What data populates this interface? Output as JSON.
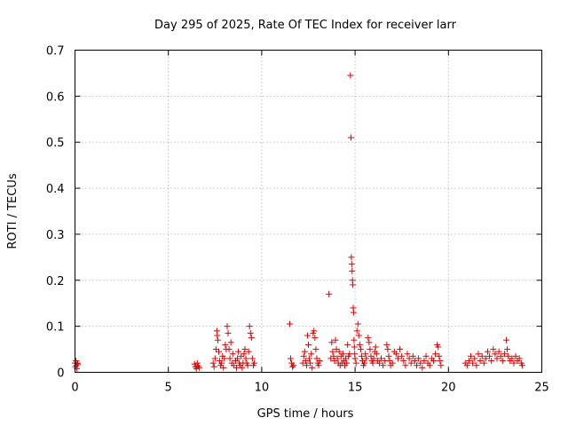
{
  "chart_data": {
    "type": "scatter",
    "title": "Day 295 of 2025, Rate Of TEC Index for receiver larr",
    "xlabel": "GPS time / hours",
    "ylabel": "ROTI / TECUs",
    "xlim": [
      0,
      25
    ],
    "ylim": [
      0,
      0.7
    ],
    "xticks": [
      "0",
      "5",
      "10",
      "15",
      "20",
      "25"
    ],
    "yticks": [
      "0",
      "0.1",
      "0.2",
      "0.3",
      "0.4",
      "0.5",
      "0.6",
      "0.7"
    ],
    "grid": true,
    "marker": "+",
    "color": "#e00000",
    "series": [
      {
        "name": "ROTI",
        "points": [
          [
            0.0,
            0.02
          ],
          [
            0.02,
            0.012
          ],
          [
            0.05,
            0.025
          ],
          [
            0.08,
            0.015
          ],
          [
            0.1,
            0.008
          ],
          [
            0.12,
            0.02
          ],
          [
            0.15,
            0.018
          ],
          [
            6.4,
            0.018
          ],
          [
            6.45,
            0.012
          ],
          [
            6.5,
            0.008
          ],
          [
            6.55,
            0.02
          ],
          [
            6.6,
            0.014
          ],
          [
            6.65,
            0.01
          ],
          [
            7.4,
            0.02
          ],
          [
            7.45,
            0.012
          ],
          [
            7.5,
            0.03
          ],
          [
            7.55,
            0.05
          ],
          [
            7.6,
            0.09
          ],
          [
            7.62,
            0.08
          ],
          [
            7.65,
            0.07
          ],
          [
            7.7,
            0.045
          ],
          [
            7.75,
            0.025
          ],
          [
            7.8,
            0.015
          ],
          [
            7.85,
            0.02
          ],
          [
            7.9,
            0.035
          ],
          [
            7.95,
            0.01
          ],
          [
            8.0,
            0.03
          ],
          [
            8.05,
            0.06
          ],
          [
            8.1,
            0.05
          ],
          [
            8.15,
            0.1
          ],
          [
            8.2,
            0.085
          ],
          [
            8.25,
            0.05
          ],
          [
            8.3,
            0.03
          ],
          [
            8.35,
            0.065
          ],
          [
            8.4,
            0.02
          ],
          [
            8.45,
            0.04
          ],
          [
            8.5,
            0.015
          ],
          [
            8.6,
            0.025
          ],
          [
            8.65,
            0.01
          ],
          [
            8.7,
            0.03
          ],
          [
            8.75,
            0.045
          ],
          [
            8.8,
            0.02
          ],
          [
            8.85,
            0.015
          ],
          [
            8.9,
            0.035
          ],
          [
            8.95,
            0.01
          ],
          [
            9.0,
            0.02
          ],
          [
            9.05,
            0.04
          ],
          [
            9.1,
            0.05
          ],
          [
            9.15,
            0.03
          ],
          [
            9.2,
            0.02
          ],
          [
            9.25,
            0.015
          ],
          [
            9.3,
            0.045
          ],
          [
            9.35,
            0.1
          ],
          [
            9.4,
            0.085
          ],
          [
            9.45,
            0.075
          ],
          [
            9.5,
            0.03
          ],
          [
            9.55,
            0.015
          ],
          [
            9.6,
            0.02
          ],
          [
            11.5,
            0.105
          ],
          [
            11.55,
            0.03
          ],
          [
            11.6,
            0.02
          ],
          [
            11.65,
            0.012
          ],
          [
            11.7,
            0.015
          ],
          [
            12.2,
            0.02
          ],
          [
            12.25,
            0.035
          ],
          [
            12.3,
            0.045
          ],
          [
            12.35,
            0.025
          ],
          [
            12.4,
            0.015
          ],
          [
            12.45,
            0.08
          ],
          [
            12.5,
            0.06
          ],
          [
            12.55,
            0.03
          ],
          [
            12.6,
            0.02
          ],
          [
            12.65,
            0.04
          ],
          [
            12.7,
            0.01
          ],
          [
            12.75,
            0.085
          ],
          [
            12.8,
            0.09
          ],
          [
            12.85,
            0.075
          ],
          [
            12.9,
            0.05
          ],
          [
            12.95,
            0.03
          ],
          [
            13.0,
            0.02
          ],
          [
            13.05,
            0.015
          ],
          [
            13.1,
            0.025
          ],
          [
            13.6,
            0.17
          ],
          [
            13.7,
            0.03
          ],
          [
            13.75,
            0.065
          ],
          [
            13.8,
            0.045
          ],
          [
            13.85,
            0.035
          ],
          [
            13.9,
            0.025
          ],
          [
            13.95,
            0.07
          ],
          [
            14.0,
            0.05
          ],
          [
            14.05,
            0.03
          ],
          [
            14.1,
            0.02
          ],
          [
            14.15,
            0.045
          ],
          [
            14.2,
            0.015
          ],
          [
            14.25,
            0.035
          ],
          [
            14.3,
            0.02
          ],
          [
            14.35,
            0.04
          ],
          [
            14.4,
            0.025
          ],
          [
            14.45,
            0.015
          ],
          [
            14.5,
            0.03
          ],
          [
            14.55,
            0.02
          ],
          [
            14.6,
            0.06
          ],
          [
            14.65,
            0.035
          ],
          [
            14.7,
            0.04
          ],
          [
            14.75,
            0.645
          ],
          [
            14.78,
            0.51
          ],
          [
            14.8,
            0.25
          ],
          [
            14.82,
            0.235
          ],
          [
            14.84,
            0.22
          ],
          [
            14.86,
            0.2
          ],
          [
            14.88,
            0.19
          ],
          [
            14.9,
            0.14
          ],
          [
            14.92,
            0.13
          ],
          [
            14.94,
            0.07
          ],
          [
            14.96,
            0.055
          ],
          [
            14.98,
            0.04
          ],
          [
            15.0,
            0.03
          ],
          [
            15.05,
            0.02
          ],
          [
            15.1,
            0.09
          ],
          [
            15.15,
            0.105
          ],
          [
            15.2,
            0.08
          ],
          [
            15.25,
            0.06
          ],
          [
            15.3,
            0.05
          ],
          [
            15.35,
            0.035
          ],
          [
            15.4,
            0.025
          ],
          [
            15.45,
            0.015
          ],
          [
            15.5,
            0.02
          ],
          [
            15.55,
            0.04
          ],
          [
            15.6,
            0.03
          ],
          [
            15.7,
            0.075
          ],
          [
            15.75,
            0.065
          ],
          [
            15.8,
            0.05
          ],
          [
            15.85,
            0.035
          ],
          [
            15.9,
            0.025
          ],
          [
            15.95,
            0.02
          ],
          [
            16.0,
            0.03
          ],
          [
            16.05,
            0.045
          ],
          [
            16.1,
            0.055
          ],
          [
            16.15,
            0.04
          ],
          [
            16.2,
            0.025
          ],
          [
            16.3,
            0.02
          ],
          [
            16.4,
            0.03
          ],
          [
            16.5,
            0.015
          ],
          [
            16.6,
            0.025
          ],
          [
            16.7,
            0.06
          ],
          [
            16.75,
            0.05
          ],
          [
            16.8,
            0.035
          ],
          [
            16.85,
            0.025
          ],
          [
            16.9,
            0.015
          ],
          [
            17.0,
            0.02
          ],
          [
            17.1,
            0.045
          ],
          [
            17.2,
            0.04
          ],
          [
            17.3,
            0.03
          ],
          [
            17.4,
            0.05
          ],
          [
            17.5,
            0.035
          ],
          [
            17.6,
            0.025
          ],
          [
            17.7,
            0.015
          ],
          [
            17.8,
            0.04
          ],
          [
            17.9,
            0.03
          ],
          [
            18.0,
            0.02
          ],
          [
            18.1,
            0.035
          ],
          [
            18.2,
            0.025
          ],
          [
            18.3,
            0.015
          ],
          [
            18.4,
            0.03
          ],
          [
            18.5,
            0.02
          ],
          [
            18.6,
            0.01
          ],
          [
            18.7,
            0.025
          ],
          [
            18.8,
            0.035
          ],
          [
            18.9,
            0.02
          ],
          [
            19.0,
            0.015
          ],
          [
            19.1,
            0.03
          ],
          [
            19.2,
            0.025
          ],
          [
            19.3,
            0.04
          ],
          [
            19.4,
            0.06
          ],
          [
            19.45,
            0.055
          ],
          [
            19.5,
            0.035
          ],
          [
            19.55,
            0.025
          ],
          [
            19.6,
            0.015
          ],
          [
            20.9,
            0.02
          ],
          [
            21.0,
            0.015
          ],
          [
            21.1,
            0.025
          ],
          [
            21.2,
            0.035
          ],
          [
            21.3,
            0.02
          ],
          [
            21.4,
            0.03
          ],
          [
            21.5,
            0.015
          ],
          [
            21.6,
            0.04
          ],
          [
            21.7,
            0.025
          ],
          [
            21.8,
            0.035
          ],
          [
            21.9,
            0.02
          ],
          [
            22.0,
            0.03
          ],
          [
            22.1,
            0.045
          ],
          [
            22.2,
            0.035
          ],
          [
            22.3,
            0.025
          ],
          [
            22.4,
            0.05
          ],
          [
            22.5,
            0.04
          ],
          [
            22.6,
            0.03
          ],
          [
            22.7,
            0.045
          ],
          [
            22.8,
            0.035
          ],
          [
            22.9,
            0.025
          ],
          [
            23.0,
            0.04
          ],
          [
            23.1,
            0.07
          ],
          [
            23.15,
            0.05
          ],
          [
            23.2,
            0.035
          ],
          [
            23.3,
            0.025
          ],
          [
            23.4,
            0.03
          ],
          [
            23.5,
            0.02
          ],
          [
            23.6,
            0.035
          ],
          [
            23.7,
            0.025
          ],
          [
            23.8,
            0.03
          ],
          [
            23.9,
            0.02
          ],
          [
            23.95,
            0.015
          ]
        ]
      }
    ]
  }
}
